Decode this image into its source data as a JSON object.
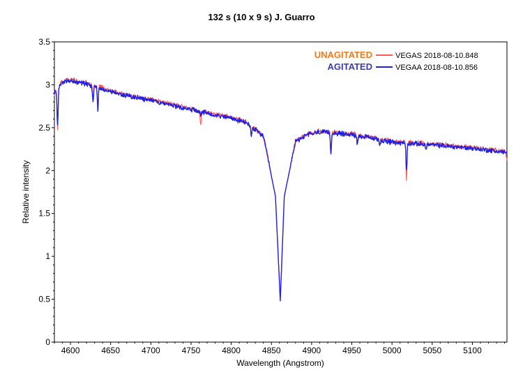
{
  "chart_data": {
    "type": "line",
    "title": "132 s (10 x 9 s)   J. Guarro",
    "xlabel": "Wavelength (Angstrom)",
    "ylabel": "Relative intensity",
    "xlim": [
      4580,
      5143
    ],
    "ylim": [
      0,
      3.5
    ],
    "x_ticks": [
      4600,
      4650,
      4700,
      4750,
      4800,
      4850,
      4900,
      4950,
      5000,
      5050,
      5100
    ],
    "y_ticks": [
      0,
      0.5,
      1,
      1.5,
      2,
      2.5,
      3,
      3.5
    ],
    "y_tick_labels": [
      "0",
      "0.5",
      "1",
      "1.5",
      "2",
      "2.5",
      "3",
      "3.5"
    ],
    "grid": false,
    "legend_position": "top-right",
    "colors": {
      "unagitated_label": "#f07a18",
      "agitated_label": "#3a3ab8"
    },
    "series": [
      {
        "condition_label": "UNAGITATED",
        "legend_text": "VEGAS  2018-08-10.848",
        "color": "#ff5a5a",
        "continuum": [
          [
            4580,
            2.9
          ],
          [
            4590,
            3.04
          ],
          [
            4600,
            3.06
          ],
          [
            4620,
            3.02
          ],
          [
            4650,
            2.93
          ],
          [
            4680,
            2.86
          ],
          [
            4700,
            2.83
          ],
          [
            4750,
            2.72
          ],
          [
            4800,
            2.62
          ],
          [
            4820,
            2.56
          ],
          [
            4840,
            2.4
          ],
          [
            4855,
            1.7
          ],
          [
            4861,
            0.5
          ],
          [
            4866,
            1.7
          ],
          [
            4880,
            2.35
          ],
          [
            4895,
            2.43
          ],
          [
            4910,
            2.46
          ],
          [
            4950,
            2.43
          ],
          [
            5000,
            2.34
          ],
          [
            5050,
            2.31
          ],
          [
            5100,
            2.27
          ],
          [
            5143,
            2.22
          ]
        ],
        "absorption_lines": [
          [
            4584,
            0.45
          ],
          [
            4628,
            0.18
          ],
          [
            4634,
            0.22
          ],
          [
            4762,
            0.18
          ],
          [
            4825,
            0.12
          ],
          [
            4924,
            0.22
          ],
          [
            4957,
            0.08
          ],
          [
            4985,
            0.06
          ],
          [
            5018,
            0.45
          ],
          [
            5042,
            0.06
          ],
          [
            5143,
            0.12
          ]
        ]
      },
      {
        "condition_label": "AGITATED",
        "legend_text": "VEGAA  2018-08-10.856",
        "color": "#2020e0",
        "continuum": [
          [
            4580,
            2.9
          ],
          [
            4590,
            3.03
          ],
          [
            4600,
            3.05
          ],
          [
            4620,
            3.01
          ],
          [
            4650,
            2.92
          ],
          [
            4680,
            2.85
          ],
          [
            4700,
            2.82
          ],
          [
            4750,
            2.71
          ],
          [
            4800,
            2.61
          ],
          [
            4820,
            2.55
          ],
          [
            4840,
            2.4
          ],
          [
            4855,
            1.7
          ],
          [
            4861,
            0.48
          ],
          [
            4866,
            1.7
          ],
          [
            4880,
            2.34
          ],
          [
            4895,
            2.42
          ],
          [
            4910,
            2.45
          ],
          [
            4950,
            2.42
          ],
          [
            5000,
            2.33
          ],
          [
            5050,
            2.3
          ],
          [
            5100,
            2.26
          ],
          [
            5143,
            2.21
          ]
        ],
        "absorption_lines": [
          [
            4584,
            0.45
          ],
          [
            4628,
            0.2
          ],
          [
            4634,
            0.25
          ],
          [
            4762,
            0.06
          ],
          [
            4825,
            0.12
          ],
          [
            4924,
            0.25
          ],
          [
            4957,
            0.1
          ],
          [
            4985,
            0.06
          ],
          [
            5018,
            0.32
          ],
          [
            5042,
            0.06
          ]
        ]
      }
    ]
  }
}
